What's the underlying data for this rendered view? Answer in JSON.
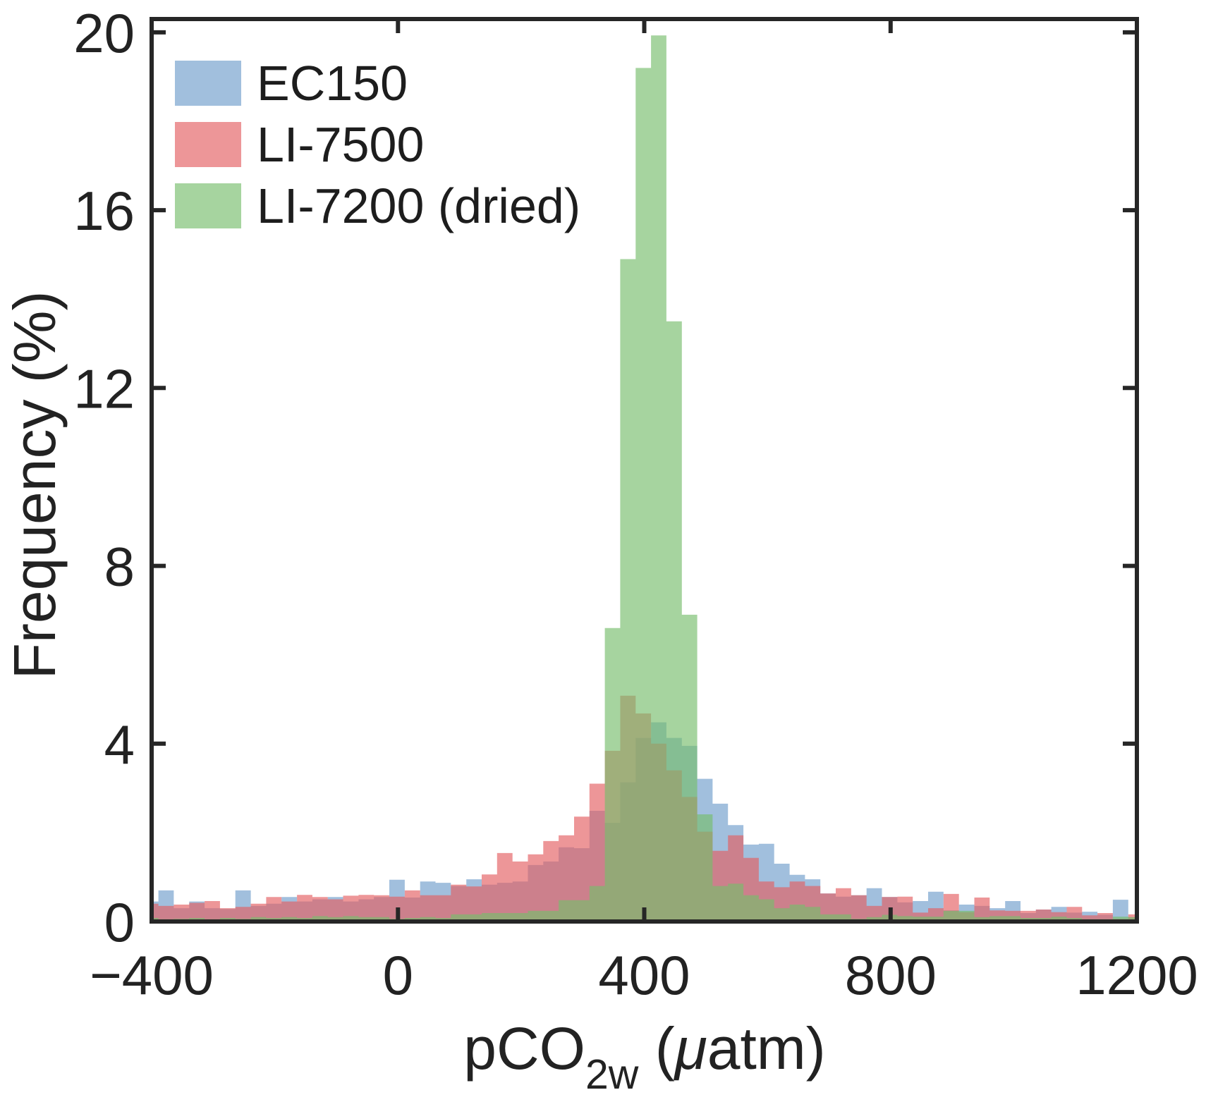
{
  "figure": {
    "background": "#ffffff",
    "axis_color": "#262626",
    "text_color": "#222222"
  },
  "chart_data": {
    "type": "bar",
    "subtype": "overlaid-histogram",
    "title": "",
    "xlabel": "pCO2w (μatm)",
    "xlabel_main": "pCO",
    "xlabel_sub": "2w",
    "xlabel_unit_pre": " (",
    "xlabel_mu": "μ",
    "xlabel_unit_post": "atm)",
    "ylabel": "Frequency (%)",
    "xlim": [
      -400,
      1200
    ],
    "ylim": [
      0,
      20.3
    ],
    "grid": false,
    "legend_position": "top-left",
    "xticks": [
      {
        "value": -400,
        "label": "−400"
      },
      {
        "value": 0,
        "label": "0"
      },
      {
        "value": 400,
        "label": "400"
      },
      {
        "value": 800,
        "label": "800"
      },
      {
        "value": 1200,
        "label": "1200"
      }
    ],
    "yticks": [
      {
        "value": 0,
        "label": "0"
      },
      {
        "value": 4,
        "label": "4"
      },
      {
        "value": 8,
        "label": "8"
      },
      {
        "value": 12,
        "label": "12"
      },
      {
        "value": 16,
        "label": "16"
      },
      {
        "value": 20,
        "label": "20"
      }
    ],
    "bins": {
      "start": -414,
      "width": 25,
      "count": 65
    },
    "series": [
      {
        "name": "EC150",
        "color": "#6e9dcb",
        "fill_opacity": 0.65,
        "values": [
          0.45,
          0.7,
          0.3,
          0.45,
          0.3,
          0.28,
          0.7,
          0.35,
          0.4,
          0.55,
          0.45,
          0.5,
          0.55,
          0.45,
          0.5,
          0.55,
          0.94,
          0.54,
          0.9,
          0.87,
          0.8,
          0.95,
          0.83,
          0.87,
          0.9,
          1.27,
          1.35,
          1.67,
          1.65,
          2.49,
          2.22,
          3.13,
          4.13,
          4.48,
          4.13,
          3.95,
          3.21,
          2.65,
          2.17,
          1.73,
          1.75,
          1.3,
          1.05,
          0.95,
          0.63,
          0.56,
          0.59,
          0.75,
          0.55,
          0.43,
          0.46,
          0.67,
          0.25,
          0.38,
          0.35,
          0.3,
          0.46,
          0.19,
          0.27,
          0.33,
          0.2,
          0.22,
          0.15,
          0.49,
          0.1
        ]
      },
      {
        "name": "LI-7500",
        "color": "#e35d61",
        "fill_opacity": 0.65,
        "values": [
          0.4,
          0.35,
          0.38,
          0.42,
          0.46,
          0.3,
          0.33,
          0.4,
          0.55,
          0.45,
          0.6,
          0.55,
          0.5,
          0.58,
          0.6,
          0.59,
          0.56,
          0.7,
          0.59,
          0.59,
          0.83,
          0.79,
          1.06,
          1.54,
          1.35,
          1.51,
          1.81,
          1.94,
          2.36,
          3.1,
          3.84,
          5.08,
          4.68,
          4.0,
          3.4,
          2.8,
          2.02,
          1.59,
          1.94,
          1.43,
          0.9,
          0.77,
          0.9,
          0.8,
          0.63,
          0.75,
          0.59,
          0.35,
          0.55,
          0.56,
          0.2,
          0.3,
          0.62,
          0.21,
          0.54,
          0.25,
          0.24,
          0.24,
          0.27,
          0.21,
          0.33,
          0.14,
          0.19,
          0.06,
          0.16
        ]
      },
      {
        "name": "LI-7200 (dried)",
        "color": "#77bd6b",
        "fill_opacity": 0.65,
        "values": [
          0.08,
          0.05,
          0.06,
          0.08,
          0.05,
          0.08,
          0.06,
          0.1,
          0.08,
          0.1,
          0.08,
          0.12,
          0.1,
          0.12,
          0.1,
          0.1,
          0.06,
          0.08,
          0.1,
          0.08,
          0.16,
          0.16,
          0.19,
          0.19,
          0.19,
          0.24,
          0.24,
          0.48,
          0.48,
          0.8,
          6.6,
          14.9,
          19.2,
          19.93,
          13.5,
          6.9,
          2.41,
          0.8,
          0.85,
          0.59,
          0.5,
          0.3,
          0.38,
          0.33,
          0.16,
          0.16,
          0.06,
          0.1,
          0.15,
          0.12,
          0.11,
          0.11,
          0.24,
          0.24,
          0.1,
          0.12,
          0.12,
          0.08,
          0.08,
          0.11,
          0.08,
          0.05,
          0.05,
          0.11,
          0.1
        ]
      }
    ]
  }
}
